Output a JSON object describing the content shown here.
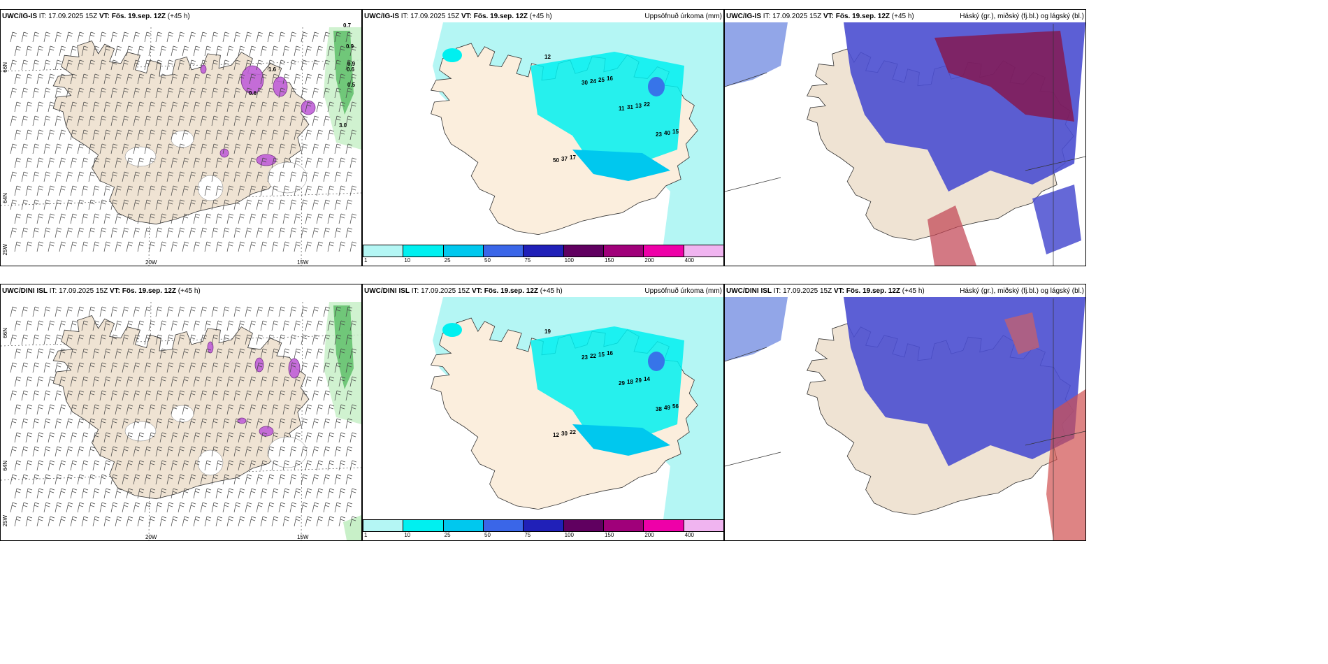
{
  "panels": [
    {
      "model": "UWC/IG-IS",
      "it_label": "IT:",
      "it": "17.09.2025 15Z",
      "vt_label": "VT:",
      "vt": "Fös. 19.sep. 12Z",
      "lead": "(+45 h)",
      "title": ""
    },
    {
      "model": "UWC/IG-IS",
      "it_label": "IT:",
      "it": "17.09.2025 15Z",
      "vt_label": "VT:",
      "vt": "Fös. 19.sep. 12Z",
      "lead": "(+45 h)",
      "title": "Uppsöfnuð úrkoma (mm)"
    },
    {
      "model": "UWC/IG-IS",
      "it_label": "IT:",
      "it": "17.09.2025 15Z",
      "vt_label": "VT:",
      "vt": "Fös. 19.sep. 12Z",
      "lead": "(+45 h)",
      "title": "Háský (gr.), miðský (fj.bl.) og lágský (bl.)"
    },
    {
      "model": "UWC/DINI ISL",
      "it_label": "IT:",
      "it": "17.09.2025 15Z",
      "vt_label": "VT:",
      "vt": "Fös. 19.sep. 12Z",
      "lead": "(+45 h)",
      "title": ""
    },
    {
      "model": "UWC/DINI ISL",
      "it_label": "IT:",
      "it": "17.09.2025 15Z",
      "vt_label": "VT:",
      "vt": "Fös. 19.sep. 12Z",
      "lead": "(+45 h)",
      "title": "Uppsöfnuð úrkoma (mm)"
    },
    {
      "model": "UWC/DINI ISL",
      "it_label": "IT:",
      "it": "17.09.2025 15Z",
      "vt_label": "VT:",
      "vt": "Fös. 19.sep. 12Z",
      "lead": "(+45 h)",
      "title": "Háský (gr.), miðský (fj.bl.) og lágský (bl.)"
    }
  ],
  "lat_labels": [
    "66N",
    "64N",
    "25W"
  ],
  "lon_labels": [
    "20W",
    "15W"
  ],
  "colorbar": {
    "ticks": [
      "1",
      "10",
      "25",
      "50",
      "75",
      "100",
      "150",
      "200",
      "400"
    ],
    "colors": [
      "#b4f6f4",
      "#00f0f0",
      "#00c8ee",
      "#3a66e8",
      "#2020b8",
      "#600060",
      "#a0007a",
      "#ee00a8",
      "#f0b4f0"
    ]
  },
  "precip_labels_top": [
    "12",
    "30",
    "11",
    "23",
    "50",
    "24",
    "31",
    "40",
    "37",
    "25",
    "13",
    "15",
    "17",
    "16",
    "22"
  ],
  "precip_labels_bottom": [
    "19",
    "23",
    "29",
    "38",
    "12",
    "22",
    "18",
    "49",
    "30",
    "15",
    "29",
    "56",
    "22",
    "16",
    "14"
  ],
  "wind_labels_top": [
    "0.7",
    "0.9",
    "0.9",
    "0.6",
    "0.5",
    "3.0",
    "1.6",
    "0.6"
  ],
  "wind_labels_bottom": []
}
